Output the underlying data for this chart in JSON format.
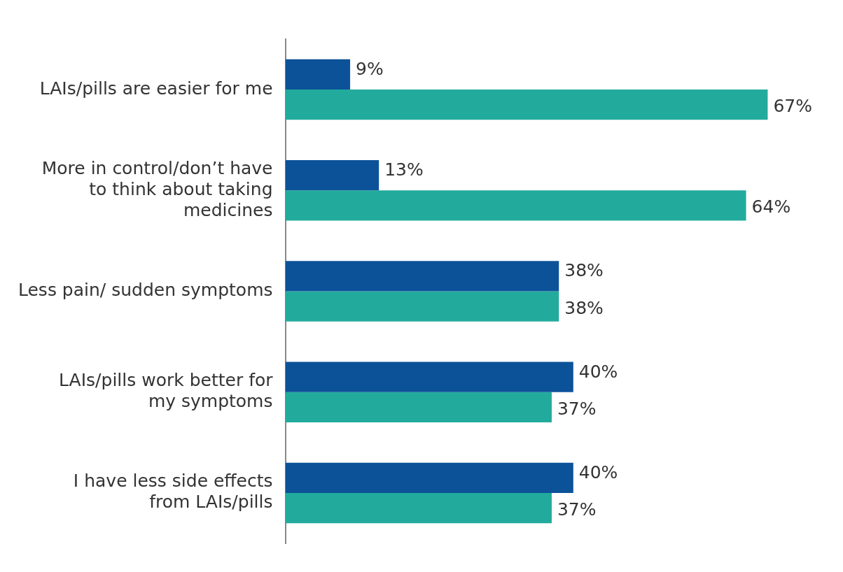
{
  "chart_data": {
    "type": "bar",
    "orientation": "horizontal",
    "categories": [
      "LAIs/pills are easier for me",
      "More in control/don’t have to think about taking medicines",
      "Less pain/ sudden symptoms",
      "LAIs/pills work better for my symptoms",
      "I have less side effects from LAIs/pills"
    ],
    "series": [
      {
        "color": "#0c5299",
        "values": [
          9,
          13,
          38,
          40,
          40
        ],
        "value_labels": [
          "9%",
          "13%",
          "38%",
          "40%",
          "40%"
        ]
      },
      {
        "color": "#22ab9c",
        "values": [
          67,
          64,
          38,
          37,
          37
        ],
        "value_labels": [
          "67%",
          "64%",
          "38%",
          "37%",
          "37%"
        ]
      }
    ],
    "legend": false
  }
}
